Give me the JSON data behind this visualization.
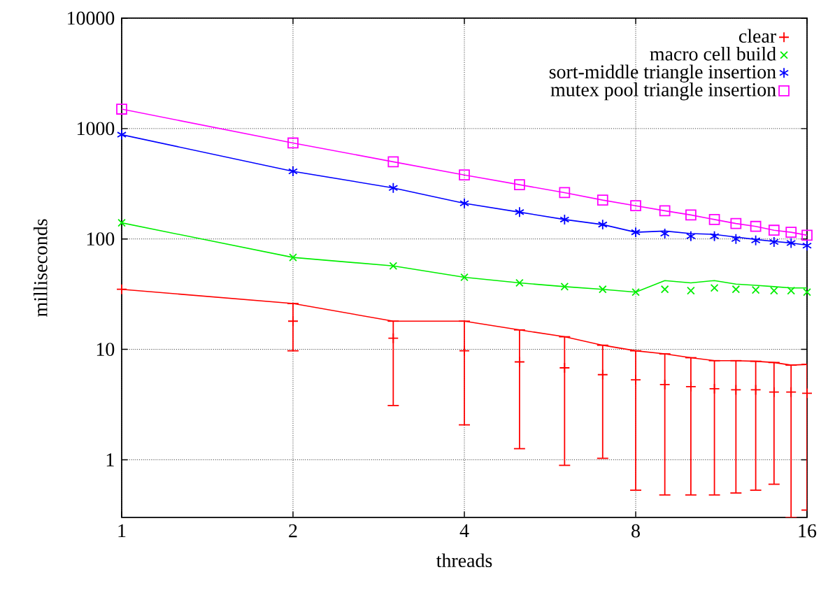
{
  "chart_data": {
    "type": "scatter",
    "xlabel": "threads",
    "ylabel": "milliseconds",
    "log": "xy",
    "grid": true,
    "legend": "top right",
    "xlim": [
      1,
      16
    ],
    "ylim": [
      0.3,
      10000
    ],
    "xticks": [
      1,
      2,
      4,
      8,
      16
    ],
    "yticks": [
      1,
      10,
      100,
      1000,
      10000
    ],
    "series": [
      {
        "type": "line",
        "color": "#ff0000",
        "x": [
          1,
          2,
          3,
          4,
          5,
          6,
          7,
          8,
          9,
          10,
          11,
          12,
          13,
          14,
          15,
          16
        ],
        "values": [
          35,
          26,
          18,
          18,
          15,
          13,
          10.9,
          9.7,
          9.1,
          8.4,
          7.9,
          7.9,
          7.8,
          7.6,
          7.2,
          7.3
        ]
      },
      {
        "type": "line",
        "color": "#00ee00",
        "x": [
          1,
          2,
          3,
          4,
          5,
          6,
          7,
          8,
          9,
          10,
          11,
          12,
          13,
          14,
          15,
          16
        ],
        "values": [
          140,
          68,
          57,
          45,
          40,
          37,
          35,
          33,
          42,
          40,
          42,
          39,
          38,
          37,
          36,
          36
        ]
      },
      {
        "type": "line",
        "color": "#0000ff",
        "x": [
          1,
          2,
          3,
          4,
          5,
          6,
          7,
          8,
          9,
          10,
          11,
          12,
          13,
          14,
          15,
          16
        ],
        "values": [
          880,
          410,
          290,
          210,
          175,
          150,
          135,
          115,
          118,
          112,
          110,
          104,
          99,
          95,
          92,
          88
        ]
      },
      {
        "type": "line",
        "color": "#ff00ff",
        "x": [
          1,
          2,
          3,
          4,
          5,
          6,
          7,
          8,
          9,
          10,
          11,
          12,
          13,
          14,
          15,
          16
        ],
        "values": [
          1500,
          740,
          500,
          380,
          310,
          263,
          225,
          200,
          180,
          165,
          150,
          138,
          130,
          120,
          115,
          108
        ]
      },
      {
        "name": "clear",
        "marker": "plus",
        "color": "#ff0000",
        "x": [
          1,
          2,
          3,
          4,
          5,
          6,
          7,
          8,
          9,
          10,
          11,
          12,
          13,
          14,
          15,
          16
        ],
        "values": [
          35,
          18,
          12.6,
          9.7,
          7.7,
          6.8,
          5.9,
          5.3,
          4.8,
          4.6,
          4.4,
          4.3,
          4.3,
          4.1,
          4.1,
          4.0
        ],
        "errors": [
          null,
          [
            9.7,
            26
          ],
          [
            3.1,
            18
          ],
          [
            2.07,
            18
          ],
          [
            1.26,
            15
          ],
          [
            0.89,
            13
          ],
          [
            1.03,
            10.9
          ],
          [
            0.53,
            9.7
          ],
          [
            0.48,
            9.1
          ],
          [
            0.48,
            8.4
          ],
          [
            0.48,
            7.9
          ],
          [
            0.5,
            7.9
          ],
          [
            0.53,
            7.8
          ],
          [
            0.6,
            7.6
          ],
          [
            0.3,
            7.2
          ],
          [
            0.35,
            7.3
          ]
        ]
      },
      {
        "name": "macro cell build",
        "marker": "x",
        "color": "#00ee00",
        "x": [
          1,
          2,
          3,
          4,
          5,
          6,
          7,
          8,
          9,
          10,
          11,
          12,
          13,
          14,
          15,
          16
        ],
        "values": [
          140,
          68,
          57,
          45,
          40,
          37,
          35,
          33,
          35,
          34,
          36,
          35,
          34.5,
          34,
          34,
          33
        ]
      },
      {
        "name": "sort-middle triangle insertion",
        "marker": "cross",
        "color": "#0000ff",
        "x": [
          1,
          2,
          3,
          4,
          5,
          6,
          7,
          8,
          9,
          10,
          11,
          12,
          13,
          14,
          15,
          16
        ],
        "values": [
          880,
          410,
          290,
          210,
          175,
          150,
          135,
          115,
          112,
          106,
          106,
          100,
          97,
          94,
          92,
          87
        ]
      },
      {
        "name": "mutex pool triangle insertion",
        "marker": "square",
        "color": "#ff00ff",
        "x": [
          1,
          2,
          3,
          4,
          5,
          6,
          7,
          8,
          9,
          10,
          11,
          12,
          13,
          14,
          15,
          16
        ],
        "values": [
          1500,
          740,
          500,
          380,
          310,
          263,
          225,
          200,
          180,
          165,
          150,
          138,
          130,
          120,
          115,
          108
        ]
      }
    ]
  }
}
